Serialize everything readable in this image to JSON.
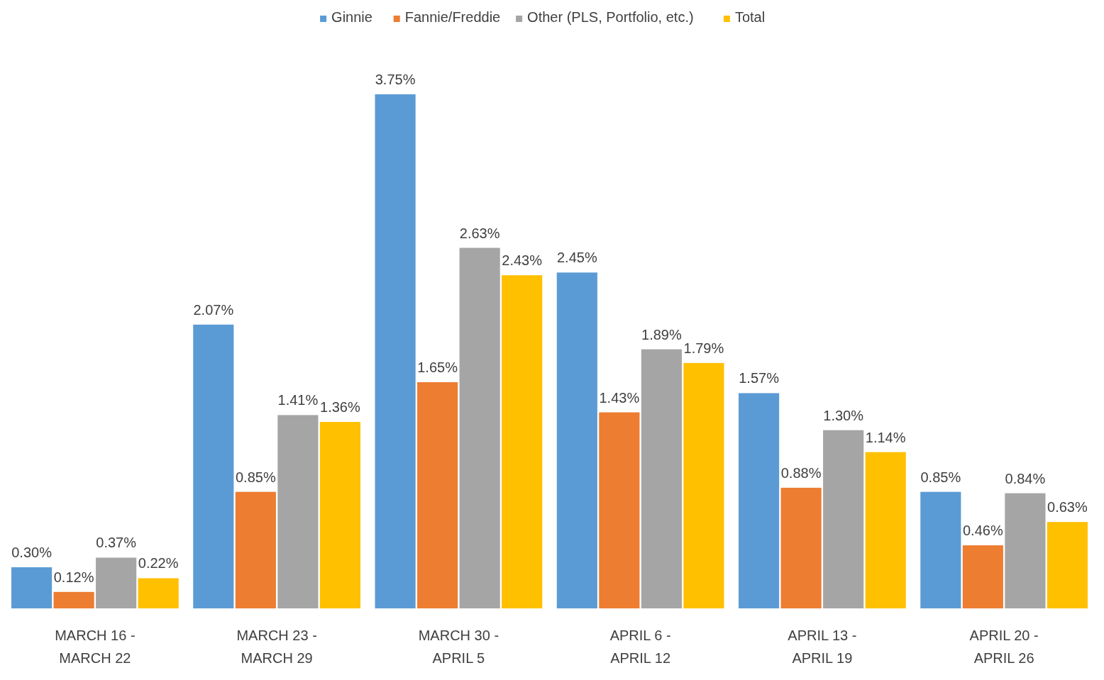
{
  "chart_data": {
    "type": "bar",
    "categories": [
      "MARCH 16 - MARCH 22",
      "MARCH 23 - MARCH 29",
      "MARCH 30 - APRIL 5",
      "APRIL 6 - APRIL 12",
      "APRIL 13 - APRIL 19",
      "APRIL 20 - APRIL 26"
    ],
    "series": [
      {
        "name": "Ginnie",
        "color": "#5b9bd5",
        "values": [
          0.3,
          2.07,
          3.75,
          2.45,
          1.57,
          0.85
        ],
        "value_labels": [
          "0.30%",
          "2.07%",
          "3.75%",
          "2.45%",
          "1.57%",
          "0.85%"
        ]
      },
      {
        "name": "Fannie/Freddie",
        "color": "#ed7d31",
        "values": [
          0.12,
          0.85,
          1.65,
          1.43,
          0.88,
          0.46
        ],
        "value_labels": [
          "0.12%",
          "0.85%",
          "1.65%",
          "1.43%",
          "0.88%",
          "0.46%"
        ]
      },
      {
        "name": "Other (PLS, Portfolio, etc.)",
        "color": "#a5a5a5",
        "values": [
          0.37,
          1.41,
          2.63,
          1.89,
          1.3,
          0.84
        ],
        "value_labels": [
          "0.37%",
          "1.41%",
          "2.63%",
          "1.89%",
          "1.30%",
          "0.84%"
        ]
      },
      {
        "name": "Total",
        "color": "#ffc000",
        "values": [
          0.22,
          1.36,
          2.43,
          1.79,
          1.14,
          0.63
        ],
        "value_labels": [
          "0.22%",
          "1.36%",
          "2.43%",
          "1.79%",
          "1.14%",
          "0.63%"
        ]
      }
    ],
    "legend": "top"
  }
}
